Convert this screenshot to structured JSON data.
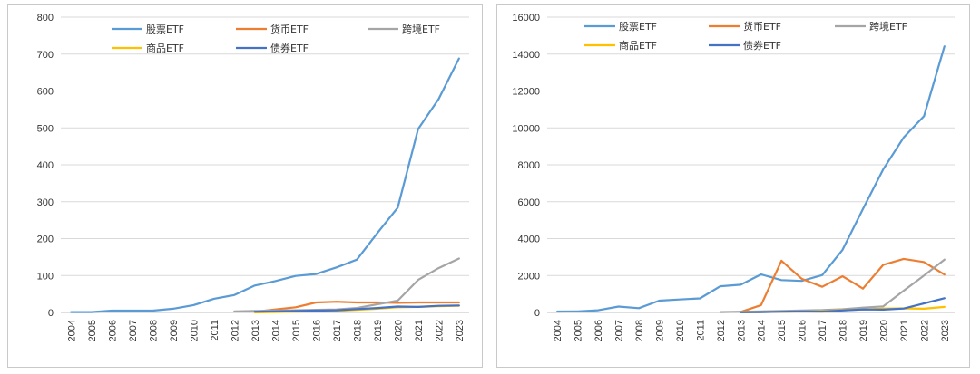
{
  "chart_data": [
    {
      "type": "line",
      "title": "",
      "xlabel": "",
      "ylabel": "",
      "ylim": [
        0,
        800
      ],
      "yticks": [
        0,
        100,
        200,
        300,
        400,
        500,
        600,
        700,
        800
      ],
      "categories": [
        "2004",
        "2005",
        "2006",
        "2007",
        "2008",
        "2009",
        "2010",
        "2011",
        "2012",
        "2013",
        "2014",
        "2015",
        "2016",
        "2017",
        "2018",
        "2019",
        "2020",
        "2021",
        "2022",
        "2023"
      ],
      "legend_position": "top",
      "series": [
        {
          "name": "股票ETF",
          "color": "#5b9bd5",
          "values": [
            1,
            1,
            5,
            5,
            5,
            10,
            20,
            37,
            47,
            73,
            85,
            99,
            104,
            122,
            143,
            215,
            284,
            497,
            578,
            688
          ]
        },
        {
          "name": "货币ETF",
          "color": "#ed7d31",
          "values": [
            null,
            null,
            null,
            null,
            null,
            null,
            null,
            null,
            null,
            2,
            8,
            14,
            27,
            29,
            27,
            27,
            26,
            27,
            27,
            27
          ]
        },
        {
          "name": "跨境ETF",
          "color": "#a5a5a5",
          "values": [
            null,
            null,
            null,
            null,
            null,
            null,
            null,
            null,
            3,
            4,
            5,
            6,
            7,
            8,
            12,
            22,
            32,
            88,
            120,
            146
          ]
        },
        {
          "name": "商品ETF",
          "color": "#ffc000",
          "values": [
            null,
            null,
            null,
            null,
            null,
            null,
            null,
            null,
            null,
            0,
            1,
            2,
            3,
            4,
            7,
            10,
            14,
            15,
            17,
            18
          ]
        },
        {
          "name": "债券ETF",
          "color": "#4472c4",
          "values": [
            null,
            null,
            null,
            null,
            null,
            null,
            null,
            null,
            null,
            2,
            3,
            4,
            5,
            6,
            9,
            12,
            16,
            15,
            18,
            19
          ]
        }
      ]
    },
    {
      "type": "line",
      "title": "",
      "xlabel": "",
      "ylabel": "",
      "ylim": [
        0,
        16000
      ],
      "yticks": [
        0,
        2000,
        4000,
        6000,
        8000,
        10000,
        12000,
        14000,
        16000
      ],
      "categories": [
        "2004",
        "2005",
        "2006",
        "2007",
        "2008",
        "2009",
        "2010",
        "2011",
        "2012",
        "2013",
        "2014",
        "2015",
        "2016",
        "2017",
        "2018",
        "2019",
        "2020",
        "2021",
        "2022",
        "2023"
      ],
      "legend_position": "top",
      "series": [
        {
          "name": "股票ETF",
          "color": "#5b9bd5",
          "values": [
            50,
            60,
            120,
            320,
            230,
            640,
            700,
            760,
            1420,
            1500,
            2060,
            1750,
            1710,
            2020,
            3390,
            5610,
            7760,
            9480,
            10640,
            14420
          ]
        },
        {
          "name": "货币ETF",
          "color": "#ed7d31",
          "values": [
            null,
            null,
            null,
            null,
            null,
            null,
            null,
            null,
            null,
            30,
            400,
            2800,
            1820,
            1390,
            1960,
            1290,
            2580,
            2900,
            2730,
            2050
          ]
        },
        {
          "name": "跨境ETF",
          "color": "#a5a5a5",
          "values": [
            null,
            null,
            null,
            null,
            null,
            null,
            null,
            null,
            20,
            40,
            60,
            80,
            110,
            130,
            170,
            260,
            330,
            1180,
            2000,
            2860
          ]
        },
        {
          "name": "商品ETF",
          "color": "#ffc000",
          "values": [
            null,
            null,
            null,
            null,
            null,
            null,
            null,
            null,
            null,
            10,
            20,
            40,
            60,
            80,
            120,
            160,
            210,
            220,
            200,
            300
          ]
        },
        {
          "name": "债券ETF",
          "color": "#4472c4",
          "values": [
            null,
            null,
            null,
            null,
            null,
            null,
            null,
            null,
            null,
            10,
            20,
            40,
            60,
            50,
            110,
            160,
            150,
            210,
            490,
            770
          ]
        }
      ]
    }
  ]
}
